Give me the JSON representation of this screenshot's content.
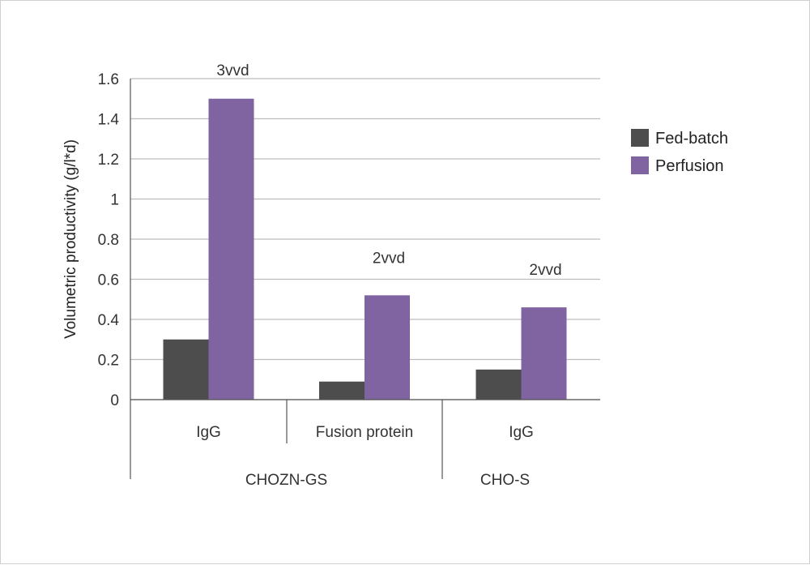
{
  "chart_data": {
    "type": "bar",
    "title": "",
    "ylabel": "Volumetric productivity (g/l*d)",
    "xlabel": "",
    "ylim": [
      0,
      1.6
    ],
    "yticks": [
      "0",
      "0.2",
      "0.4",
      "0.6",
      "0.8",
      "1",
      "1.2",
      "1.4",
      "1.6"
    ],
    "grid": true,
    "legend_position": "right",
    "categories": [
      "IgG",
      "Fusion protein",
      "IgG"
    ],
    "groups": [
      {
        "label": "CHOZN-GS",
        "categories": [
          "IgG",
          "Fusion protein"
        ]
      },
      {
        "label": "CHO-S",
        "categories": [
          "IgG"
        ]
      }
    ],
    "series": [
      {
        "name": "Fed-batch",
        "color": "#4d4d4d",
        "values": [
          0.3,
          0.09,
          0.15
        ]
      },
      {
        "name": "Perfusion",
        "color": "#8064a2",
        "values": [
          1.5,
          0.52,
          0.46
        ]
      }
    ],
    "annotations": [
      {
        "category_index": 0,
        "text": "3vvd"
      },
      {
        "category_index": 1,
        "text": "2vvd"
      },
      {
        "category_index": 2,
        "text": "2vvd"
      }
    ]
  }
}
